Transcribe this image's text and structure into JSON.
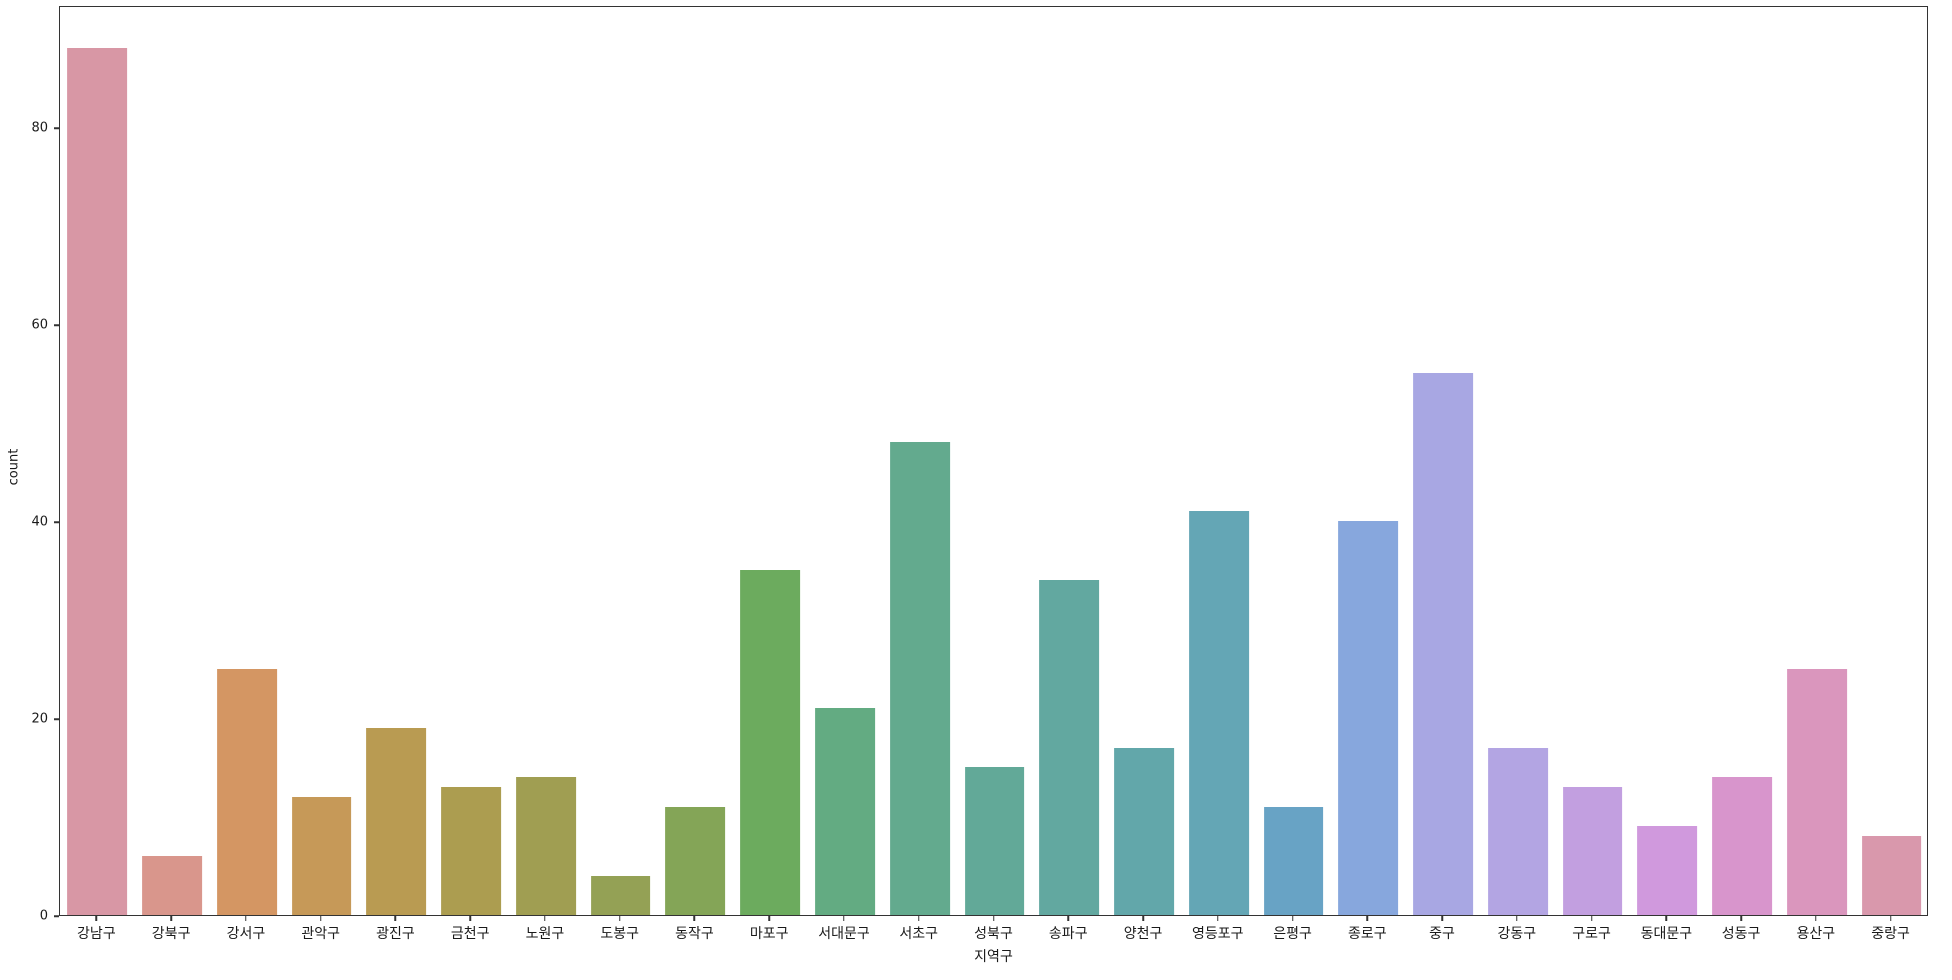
{
  "chart_data": {
    "type": "bar",
    "title": "",
    "xlabel": "지역구",
    "ylabel": "count",
    "categories": [
      "강남구",
      "강북구",
      "강서구",
      "관악구",
      "광진구",
      "금천구",
      "노원구",
      "도봉구",
      "동작구",
      "마포구",
      "서대문구",
      "서초구",
      "성북구",
      "송파구",
      "양천구",
      "영등포구",
      "은평구",
      "종로구",
      "중구",
      "강동구",
      "구로구",
      "동대문구",
      "성동구",
      "용산구",
      "중랑구"
    ],
    "values": [
      88,
      6,
      25,
      12,
      19,
      13,
      14,
      4,
      11,
      35,
      21,
      48,
      15,
      34,
      17,
      41,
      11,
      40,
      55,
      17,
      13,
      9,
      14,
      25,
      8
    ],
    "bar_colors": [
      "#d897a5",
      "#d9968c",
      "#d49663",
      "#c69958",
      "#b99b52",
      "#ac9d50",
      "#a09e52",
      "#94a155",
      "#84a557",
      "#6cab5e",
      "#63ab82",
      "#63aa8e",
      "#62a998",
      "#62a8a0",
      "#62a7aa",
      "#64a6b5",
      "#68a3c5",
      "#87a7dd",
      "#a8a7e3",
      "#b3a5e3",
      "#c29fe0",
      "#d099dd",
      "#d895cc",
      "#da96bd",
      "#d998ac"
    ],
    "yticks": [
      0,
      20,
      40,
      60,
      80
    ],
    "ylim": [
      0,
      92.4
    ],
    "grid": false,
    "legend": null,
    "bar_rel_width": 0.8,
    "spine_color": "#333333"
  }
}
